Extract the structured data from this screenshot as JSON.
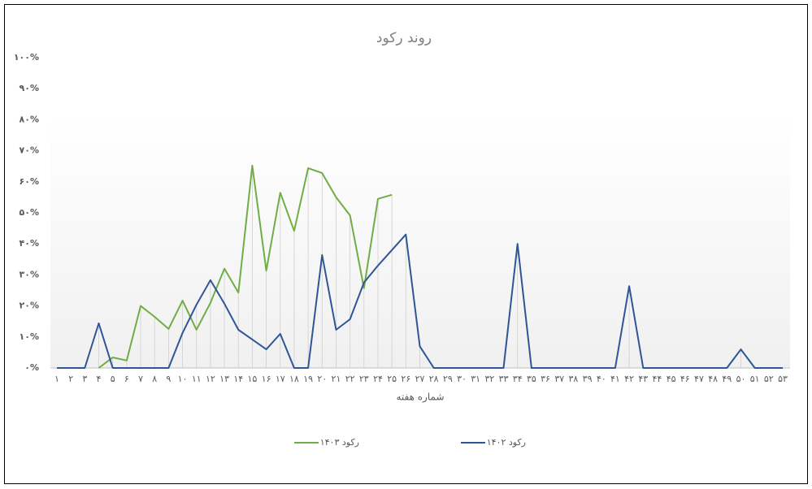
{
  "chart_data": {
    "type": "line",
    "title": "روند رکود",
    "x_label": "شماره هفته",
    "categories": [
      "۱",
      "۲",
      "۳",
      "۴",
      "۵",
      "۶",
      "۷",
      "۸",
      "۹",
      "۱۰",
      "۱۱",
      "۱۲",
      "۱۳",
      "۱۴",
      "۱۵",
      "۱۶",
      "۱۷",
      "۱۸",
      "۱۹",
      "۲۰",
      "۲۱",
      "۲۲",
      "۲۳",
      "۲۴",
      "۲۵",
      "۲۶",
      "۲۷",
      "۲۸",
      "۲۹",
      "۳۰",
      "۳۱",
      "۳۲",
      "۳۳",
      "۳۴",
      "۳۵",
      "۳۶",
      "۳۷",
      "۳۸",
      "۳۹",
      "۴۰",
      "۴۱",
      "۴۲",
      "۴۳",
      "۴۴",
      "۴۵",
      "۴۶",
      "۴۷",
      "۴۸",
      "۴۹",
      "۵۰",
      "۵۱",
      "۵۲",
      "۵۳"
    ],
    "series": [
      {
        "name": "رکود ۱۴۰۳",
        "color": "#70ad47",
        "values": [
          null,
          null,
          null,
          0,
          3.4,
          2.4,
          20,
          16.5,
          12.6,
          21.7,
          12.3,
          21,
          32,
          24.3,
          65.2,
          31.4,
          56.5,
          44.2,
          64.4,
          62.8,
          55,
          49.2,
          25.7,
          54.5,
          55.8,
          null,
          null,
          null,
          null,
          null,
          null,
          null,
          null,
          null,
          null,
          null,
          null,
          null,
          null,
          null,
          null,
          null,
          null,
          null,
          null,
          null,
          null,
          null,
          null,
          null,
          null,
          null,
          null
        ]
      },
      {
        "name": "رکود ۱۴۰۲",
        "color": "#2f5597",
        "values": [
          0,
          0,
          0,
          14.4,
          0,
          0,
          0,
          0,
          0,
          11.3,
          20.4,
          28.3,
          20.7,
          12.3,
          9.2,
          6,
          11,
          0,
          0,
          36.4,
          12.3,
          15.7,
          27.5,
          33,
          38,
          43,
          7,
          0,
          0,
          0,
          0,
          0,
          0,
          40,
          0,
          0,
          0,
          0,
          0,
          0,
          0,
          26.4,
          0,
          0,
          0,
          0,
          0,
          0,
          0,
          6,
          0,
          0,
          0
        ]
      }
    ],
    "ylim": [
      0,
      100
    ],
    "yticks": [
      {
        "value": 0,
        "label": "۰%"
      },
      {
        "value": 10,
        "label": "۱۰%"
      },
      {
        "value": 20,
        "label": "۲۰%"
      },
      {
        "value": 30,
        "label": "۳۰%"
      },
      {
        "value": 40,
        "label": "۴۰%"
      },
      {
        "value": 50,
        "label": "۵۰%"
      },
      {
        "value": 60,
        "label": "۶۰%"
      },
      {
        "value": 70,
        "label": "۷۰%"
      },
      {
        "value": 80,
        "label": "۸۰%"
      },
      {
        "value": 90,
        "label": "۹۰%"
      },
      {
        "value": 100,
        "label": "۱۰۰%"
      }
    ],
    "legend": "bottom"
  }
}
